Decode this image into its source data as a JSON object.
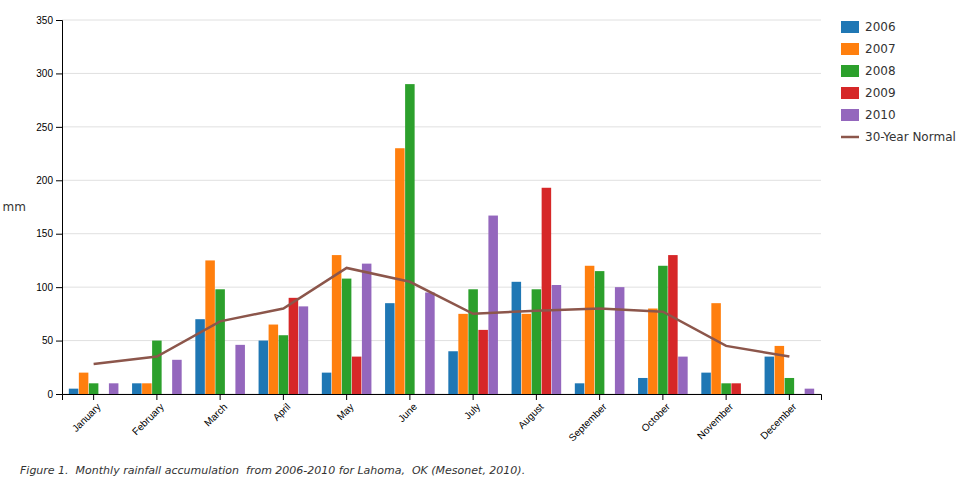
{
  "chart_data": {
    "type": "bar",
    "categories": [
      "January",
      "February",
      "March",
      "April",
      "May",
      "June",
      "July",
      "August",
      "September",
      "October",
      "November",
      "December"
    ],
    "series": [
      {
        "name": "2006",
        "type": "bar",
        "values": [
          5,
          10,
          70,
          50,
          20,
          85,
          40,
          105,
          10,
          15,
          20,
          35
        ]
      },
      {
        "name": "2007",
        "type": "bar",
        "values": [
          20,
          10,
          125,
          65,
          130,
          230,
          75,
          75,
          120,
          80,
          85,
          45
        ]
      },
      {
        "name": "2008",
        "type": "bar",
        "values": [
          10,
          50,
          98,
          55,
          108,
          290,
          98,
          98,
          115,
          120,
          10,
          15
        ]
      },
      {
        "name": "2009",
        "type": "bar",
        "values": [
          0,
          0,
          0,
          90,
          35,
          0,
          60,
          193,
          0,
          130,
          10,
          0
        ]
      },
      {
        "name": "2010",
        "type": "bar",
        "values": [
          10,
          32,
          46,
          82,
          122,
          95,
          167,
          102,
          100,
          35,
          0,
          5
        ]
      },
      {
        "name": "30-Year Normal",
        "type": "line",
        "values": [
          28,
          35,
          68,
          80,
          118,
          105,
          75,
          78,
          80,
          77,
          45,
          35
        ]
      }
    ],
    "ylabel": "mm",
    "caption": "Figure 1.  Monthly rainfall accumulation  from 2006-2010 for Lahoma,  OK (Mesonet, 2010).",
    "ylim": [
      0,
      350
    ],
    "yticks": [
      0,
      50,
      100,
      150,
      200,
      250,
      300,
      350
    ],
    "grid": true,
    "legend": "right"
  }
}
